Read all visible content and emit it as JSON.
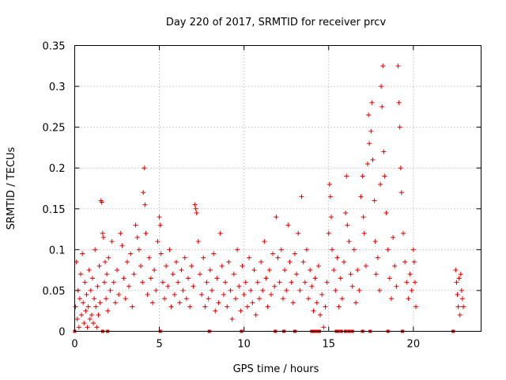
{
  "chart_data": {
    "type": "scatter",
    "title": "Day 220 of 2017, SRMTID for receiver prcv",
    "xlabel": "GPS time / hours",
    "ylabel": "SRMTID / TECUs",
    "xlim": [
      0,
      24
    ],
    "ylim": [
      0,
      0.35
    ],
    "xticks": [
      0,
      5,
      10,
      15,
      20
    ],
    "yticks": [
      0,
      0.05,
      0.1,
      0.15,
      0.2,
      0.25,
      0.3,
      0.35
    ],
    "xtick_labels": [
      "0",
      "5",
      "10",
      "15",
      "20"
    ],
    "ytick_labels": [
      "0",
      "0.05",
      "0.1",
      "0.15",
      "0.2",
      "0.25",
      "0.3",
      "0.35"
    ],
    "grid": true,
    "marker": "+",
    "color": "#e00000",
    "series": [
      {
        "name": "SRMTID",
        "points": [
          [
            0.05,
            0.03
          ],
          [
            0.1,
            0.085
          ],
          [
            0.15,
            0.015
          ],
          [
            0.2,
            0.05
          ],
          [
            0.25,
            0.005
          ],
          [
            0.3,
            0.04
          ],
          [
            0.35,
            0.07
          ],
          [
            0.4,
            0.02
          ],
          [
            0.45,
            0.095
          ],
          [
            0.5,
            0.035
          ],
          [
            0.55,
            0.01
          ],
          [
            0.6,
            0.06
          ],
          [
            0.65,
            0.025
          ],
          [
            0.7,
            0.045
          ],
          [
            0.75,
            0.005
          ],
          [
            0.8,
            0.03
          ],
          [
            0.85,
            0.075
          ],
          [
            0.9,
            0.015
          ],
          [
            0.95,
            0.05
          ],
          [
            1.0,
            0.02
          ],
          [
            1.05,
            0.065
          ],
          [
            1.1,
            0.01
          ],
          [
            1.15,
            0.04
          ],
          [
            1.2,
            0.1
          ],
          [
            1.25,
            0.03
          ],
          [
            1.3,
            0.005
          ],
          [
            1.35,
            0.055
          ],
          [
            1.4,
            0.02
          ],
          [
            1.45,
            0.08
          ],
          [
            1.5,
            0.035
          ],
          [
            1.55,
            0.16
          ],
          [
            1.6,
            0.158
          ],
          [
            1.65,
            0.12
          ],
          [
            1.7,
            0.115
          ],
          [
            1.75,
            0.06
          ],
          [
            1.8,
            0.085
          ],
          [
            1.85,
            0.04
          ],
          [
            1.9,
            0.07
          ],
          [
            1.95,
            0.025
          ],
          [
            2.0,
            0.09
          ],
          [
            2.1,
            0.05
          ],
          [
            2.2,
            0.11
          ],
          [
            2.3,
            0.06
          ],
          [
            2.4,
            0.035
          ],
          [
            2.5,
            0.075
          ],
          [
            2.6,
            0.045
          ],
          [
            2.7,
            0.12
          ],
          [
            2.8,
            0.105
          ],
          [
            2.9,
            0.065
          ],
          [
            3.0,
            0.04
          ],
          [
            3.1,
            0.085
          ],
          [
            3.2,
            0.055
          ],
          [
            3.3,
            0.095
          ],
          [
            3.4,
            0.03
          ],
          [
            3.5,
            0.07
          ],
          [
            3.6,
            0.13
          ],
          [
            3.7,
            0.115
          ],
          [
            3.8,
            0.1
          ],
          [
            3.9,
            0.08
          ],
          [
            4.0,
            0.06
          ],
          [
            4.05,
            0.17
          ],
          [
            4.1,
            0.2
          ],
          [
            4.15,
            0.155
          ],
          [
            4.2,
            0.12
          ],
          [
            4.3,
            0.045
          ],
          [
            4.4,
            0.09
          ],
          [
            4.5,
            0.065
          ],
          [
            4.6,
            0.035
          ],
          [
            4.7,
            0.075
          ],
          [
            4.8,
            0.05
          ],
          [
            4.9,
            0.11
          ],
          [
            5.0,
            0.14
          ],
          [
            5.05,
            0.13
          ],
          [
            5.1,
            0.095
          ],
          [
            5.2,
            0.06
          ],
          [
            5.3,
            0.04
          ],
          [
            5.4,
            0.08
          ],
          [
            5.5,
            0.055
          ],
          [
            5.6,
            0.1
          ],
          [
            5.7,
            0.03
          ],
          [
            5.8,
            0.07
          ],
          [
            5.9,
            0.045
          ],
          [
            6.0,
            0.085
          ],
          [
            6.1,
            0.06
          ],
          [
            6.2,
            0.035
          ],
          [
            6.3,
            0.075
          ],
          [
            6.4,
            0.05
          ],
          [
            6.5,
            0.09
          ],
          [
            6.6,
            0.04
          ],
          [
            6.7,
            0.065
          ],
          [
            6.8,
            0.03
          ],
          [
            6.9,
            0.08
          ],
          [
            7.0,
            0.055
          ],
          [
            7.1,
            0.155
          ],
          [
            7.15,
            0.15
          ],
          [
            7.2,
            0.145
          ],
          [
            7.3,
            0.11
          ],
          [
            7.4,
            0.07
          ],
          [
            7.5,
            0.045
          ],
          [
            7.6,
            0.09
          ],
          [
            7.7,
            0.03
          ],
          [
            7.8,
            0.06
          ],
          [
            7.9,
            0.04
          ],
          [
            8.0,
            0.075
          ],
          [
            8.1,
            0.05
          ],
          [
            8.2,
            0.095
          ],
          [
            8.3,
            0.025
          ],
          [
            8.4,
            0.065
          ],
          [
            8.5,
            0.035
          ],
          [
            8.6,
            0.12
          ],
          [
            8.7,
            0.08
          ],
          [
            8.8,
            0.045
          ],
          [
            8.9,
            0.06
          ],
          [
            9.0,
            0.03
          ],
          [
            9.1,
            0.085
          ],
          [
            9.2,
            0.05
          ],
          [
            9.3,
            0.015
          ],
          [
            9.4,
            0.07
          ],
          [
            9.5,
            0.04
          ],
          [
            9.6,
            0.1
          ],
          [
            9.7,
            0.055
          ],
          [
            9.8,
            0.025
          ],
          [
            9.9,
            0.08
          ],
          [
            10.0,
            0.045
          ],
          [
            10.1,
            0.06
          ],
          [
            10.2,
            0.03
          ],
          [
            10.3,
            0.09
          ],
          [
            10.4,
            0.05
          ],
          [
            10.5,
            0.035
          ],
          [
            10.6,
            0.075
          ],
          [
            10.7,
            0.02
          ],
          [
            10.8,
            0.06
          ],
          [
            10.9,
            0.04
          ],
          [
            11.0,
            0.085
          ],
          [
            11.1,
            0.05
          ],
          [
            11.2,
            0.11
          ],
          [
            11.3,
            0.065
          ],
          [
            11.4,
            0.03
          ],
          [
            11.5,
            0.075
          ],
          [
            11.6,
            0.045
          ],
          [
            11.7,
            0.095
          ],
          [
            11.8,
            0.055
          ],
          [
            11.9,
            0.14
          ],
          [
            12.0,
            0.09
          ],
          [
            12.1,
            0.06
          ],
          [
            12.2,
            0.1
          ],
          [
            12.3,
            0.04
          ],
          [
            12.4,
            0.075
          ],
          [
            12.5,
            0.05
          ],
          [
            12.6,
            0.13
          ],
          [
            12.7,
            0.085
          ],
          [
            12.8,
            0.06
          ],
          [
            12.9,
            0.035
          ],
          [
            13.0,
            0.095
          ],
          [
            13.1,
            0.07
          ],
          [
            13.2,
            0.12
          ],
          [
            13.3,
            0.05
          ],
          [
            13.4,
            0.165
          ],
          [
            13.5,
            0.085
          ],
          [
            13.6,
            0.06
          ],
          [
            13.7,
            0.1
          ],
          [
            13.8,
            0.04
          ],
          [
            13.9,
            0.075
          ],
          [
            14.0,
            0.055
          ],
          [
            14.1,
            0.025
          ],
          [
            14.2,
            0.065
          ],
          [
            14.3,
            0.035
          ],
          [
            14.4,
            0.08
          ],
          [
            14.5,
            0.02
          ],
          [
            14.6,
            0.045
          ],
          [
            14.7,
            0.005
          ],
          [
            14.8,
            0.03
          ],
          [
            14.9,
            0.06
          ],
          [
            15.0,
            0.12
          ],
          [
            15.05,
            0.18
          ],
          [
            15.1,
            0.165
          ],
          [
            15.15,
            0.14
          ],
          [
            15.2,
            0.1
          ],
          [
            15.3,
            0.075
          ],
          [
            15.4,
            0.05
          ],
          [
            15.5,
            0.09
          ],
          [
            15.6,
            0.03
          ],
          [
            15.7,
            0.065
          ],
          [
            15.8,
            0.04
          ],
          [
            15.9,
            0.085
          ],
          [
            16.0,
            0.145
          ],
          [
            16.05,
            0.19
          ],
          [
            16.1,
            0.13
          ],
          [
            16.2,
            0.11
          ],
          [
            16.3,
            0.07
          ],
          [
            16.4,
            0.055
          ],
          [
            16.5,
            0.1
          ],
          [
            16.6,
            0.035
          ],
          [
            16.7,
            0.075
          ],
          [
            16.8,
            0.05
          ],
          [
            16.9,
            0.165
          ],
          [
            17.0,
            0.19
          ],
          [
            17.05,
            0.14
          ],
          [
            17.1,
            0.12
          ],
          [
            17.2,
            0.08
          ],
          [
            17.3,
            0.205
          ],
          [
            17.35,
            0.265
          ],
          [
            17.4,
            0.23
          ],
          [
            17.5,
            0.245
          ],
          [
            17.55,
            0.28
          ],
          [
            17.6,
            0.21
          ],
          [
            17.7,
            0.16
          ],
          [
            17.75,
            0.11
          ],
          [
            17.8,
            0.07
          ],
          [
            17.9,
            0.09
          ],
          [
            18.0,
            0.05
          ],
          [
            18.05,
            0.18
          ],
          [
            18.1,
            0.3
          ],
          [
            18.15,
            0.275
          ],
          [
            18.2,
            0.325
          ],
          [
            18.25,
            0.22
          ],
          [
            18.3,
            0.19
          ],
          [
            18.4,
            0.145
          ],
          [
            18.5,
            0.1
          ],
          [
            18.6,
            0.065
          ],
          [
            18.7,
            0.04
          ],
          [
            18.8,
            0.115
          ],
          [
            18.9,
            0.08
          ],
          [
            19.0,
            0.055
          ],
          [
            19.1,
            0.325
          ],
          [
            19.15,
            0.28
          ],
          [
            19.2,
            0.25
          ],
          [
            19.25,
            0.2
          ],
          [
            19.3,
            0.17
          ],
          [
            19.4,
            0.12
          ],
          [
            19.5,
            0.085
          ],
          [
            19.6,
            0.06
          ],
          [
            19.7,
            0.04
          ],
          [
            19.8,
            0.07
          ],
          [
            19.9,
            0.05
          ],
          [
            20.0,
            0.1
          ],
          [
            20.05,
            0.085
          ],
          [
            20.1,
            0.06
          ],
          [
            20.15,
            0.03
          ],
          [
            22.5,
            0.075
          ],
          [
            22.55,
            0.06
          ],
          [
            22.6,
            0.045
          ],
          [
            22.65,
            0.03
          ],
          [
            22.7,
            0.065
          ],
          [
            22.75,
            0.02
          ],
          [
            22.8,
            0.07
          ],
          [
            22.85,
            0.05
          ],
          [
            22.9,
            0.04
          ],
          [
            22.95,
            0.03
          ]
        ]
      }
    ],
    "data_gaps_hours": [
      0,
      1.65,
      1.95,
      5.05,
      7.95,
      9.85,
      11.85,
      12.35,
      13.0,
      14.0,
      14.15,
      14.3,
      14.45,
      15.45,
      15.55,
      15.75,
      16.0,
      16.2,
      16.4,
      17.0,
      17.45,
      18.5,
      19.35,
      22.35
    ]
  }
}
